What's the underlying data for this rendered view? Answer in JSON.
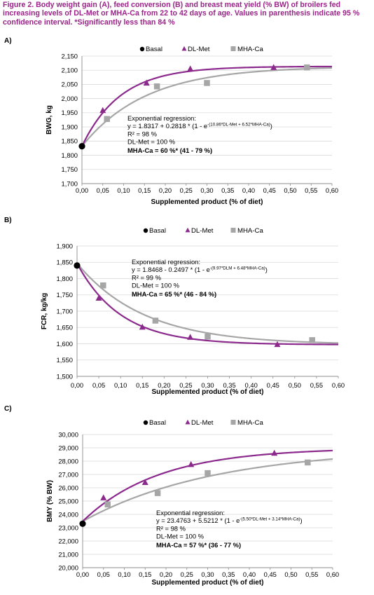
{
  "figure": {
    "caption": "Figure 2.  Body weight gain (A), feed conversion (B) and breast meat yield (% BW) of broilers fed increasing levels of DL-Met or MHA-Ca from 22 to 42 days of age. Values in parenthesis indicate 95 % confidence interval. *Significantly less than 84 %"
  },
  "colors": {
    "dlmet": "#8b2a8c",
    "mhaca": "#a6a6a6",
    "basal": "#000000",
    "caption": "#9b2389"
  },
  "chart_data": [
    {
      "type": "scatter",
      "panel": "A)",
      "ylabel": "BWG, kg",
      "xlabel": "Supplemented product (% of diet)",
      "xlim": [
        0,
        0.6
      ],
      "ylim": [
        1700,
        2150
      ],
      "yticks": [
        "1,700",
        "1,750",
        "1,800",
        "1,850",
        "1,900",
        "1,950",
        "2,000",
        "2,050",
        "2,100",
        "2,150"
      ],
      "xticks": [
        "0,00",
        "0,05",
        "0,10",
        "0,15",
        "0,20",
        "0,25",
        "0,30",
        "0,35",
        "0,40",
        "0,45",
        "0,50",
        "0,55",
        "0,60"
      ],
      "legend": [
        "Basal",
        "DL-Met",
        "MHA-Ca"
      ],
      "legend_position": "top",
      "basal": {
        "x": [
          0.0
        ],
        "y": [
          1832
        ]
      },
      "series": [
        {
          "name": "DL-Met",
          "x": [
            0.05,
            0.155,
            0.26,
            0.46
          ],
          "y": [
            1958,
            2055,
            2105,
            2110
          ]
        },
        {
          "name": "MHA-Ca",
          "x": [
            0.06,
            0.18,
            0.3,
            0.54
          ],
          "y": [
            1928,
            2043,
            2055,
            2110
          ]
        }
      ],
      "fit": {
        "a": 1.8317,
        "b": 0.2818,
        "k_dlmet": 10.86,
        "k_mhaca": 6.52,
        "scale": 1000
      },
      "annotation": {
        "title": "Exponential regression:",
        "eq_main": "y = 1.8317 + 0.2818 * (1 - e",
        "eq_exp": "-(10.86*DL-Met + 6.52*MHA-Ca)",
        "eq_end": ")",
        "r2": "R² = 98 %",
        "ref": "DL-Met = 100 %",
        "result": "MHA-Ca = 60 %* (41 - 79 %)"
      }
    },
    {
      "type": "scatter",
      "panel": "B)",
      "ylabel": "FCR, kg/kg",
      "xlabel": "Supplemented product (% of diet)",
      "xlim": [
        0,
        0.6
      ],
      "ylim": [
        1500,
        1900
      ],
      "yticks": [
        "1,500",
        "1,550",
        "1,600",
        "1,650",
        "1,700",
        "1,750",
        "1,800",
        "1,850",
        "1,900"
      ],
      "xticks": [
        "0,00",
        "0,05",
        "0,10",
        "0,15",
        "0,20",
        "0,25",
        "0,30",
        "0,35",
        "0,40",
        "0,45",
        "0,50",
        "0,55",
        "0,60"
      ],
      "legend": [
        "Basal",
        "DL-Met",
        "MHA-Ca"
      ],
      "legend_position": "top",
      "basal": {
        "x": [
          0.0
        ],
        "y": [
          1840
        ]
      },
      "series": [
        {
          "name": "DL-Met",
          "x": [
            0.05,
            0.15,
            0.26,
            0.46
          ],
          "y": [
            1740,
            1651,
            1620,
            1598
          ]
        },
        {
          "name": "MHA-Ca",
          "x": [
            0.06,
            0.18,
            0.3,
            0.54
          ],
          "y": [
            1779,
            1671,
            1622,
            1611
          ]
        }
      ],
      "fit": {
        "a": 1.8468,
        "b": -0.2497,
        "k_dlmet": 9.97,
        "k_mhaca": 6.48,
        "scale": 1000
      },
      "annotation": {
        "title": "Exponential regression:",
        "eq_main": "y = 1.8468 - 0.2497 * (1 - e",
        "eq_exp": "-(9.97*DLM + 6.48*MHA-Ca)",
        "eq_end": ")",
        "r2": "R² = 99 %",
        "ref": "DL-Met = 100 %",
        "result": "MHA-Ca = 65 %* (46 - 84 %)"
      }
    },
    {
      "type": "scatter",
      "panel": "C)",
      "ylabel": "BMY (% BW)",
      "xlabel": "Supplemented product (% of diet)",
      "xlim": [
        0,
        0.6
      ],
      "ylim": [
        20000,
        30000
      ],
      "yticks": [
        "20,000",
        "21,000",
        "22,000",
        "23,000",
        "24,000",
        "25,000",
        "26,000",
        "27,000",
        "28,000",
        "29,000",
        "30,000"
      ],
      "xticks": [
        "0,00",
        "0,05",
        "0,10",
        "0,15",
        "0,20",
        "0,25",
        "0,30",
        "0,35",
        "0,40",
        "0,45",
        "0,50",
        "0,55",
        "0,60"
      ],
      "legend": [
        "Basal",
        "DL-Met",
        "MHA-Ca"
      ],
      "legend_position": "top",
      "basal": {
        "x": [
          0.0
        ],
        "y": [
          23300
        ]
      },
      "series": [
        {
          "name": "DL-Met",
          "x": [
            0.05,
            0.15,
            0.26,
            0.46
          ],
          "y": [
            25250,
            26400,
            27750,
            28600
          ]
        },
        {
          "name": "MHA-Ca",
          "x": [
            0.06,
            0.18,
            0.3,
            0.54
          ],
          "y": [
            24750,
            25600,
            27100,
            27900
          ]
        }
      ],
      "fit": {
        "a": 23.4763,
        "b": 5.5212,
        "k_dlmet": 5.5,
        "k_mhaca": 3.14,
        "scale": 1000
      },
      "annotation": {
        "title": "Exponential regression:",
        "eq_main": "y = 23.4763 + 5.5212 * (1 - e",
        "eq_exp": "-(5.50*DL-Met + 3.14*MHA-Ca)",
        "eq_end": ")",
        "r2": "R² = 98 %",
        "ref": "DL-Met = 100 %",
        "result": "MHA-Ca = 57 %* (36 - 77 %)"
      }
    }
  ]
}
